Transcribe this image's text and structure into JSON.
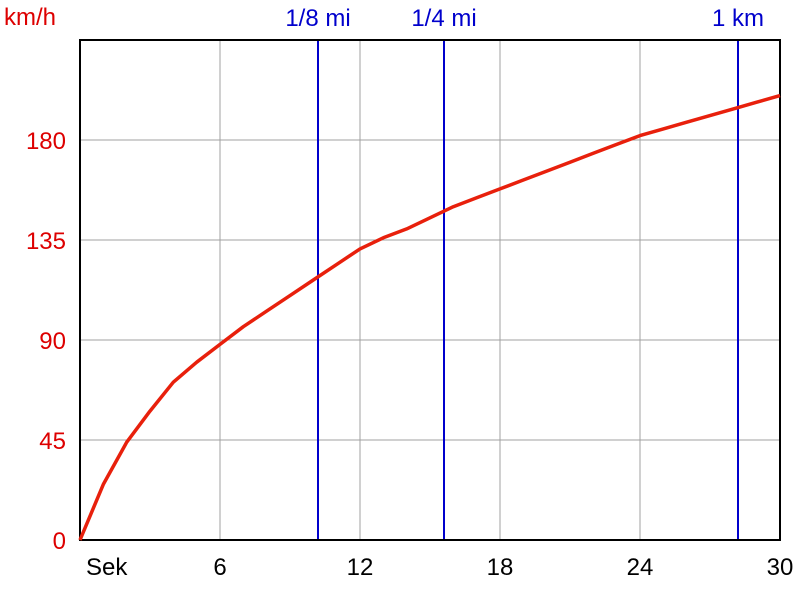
{
  "chart_data": {
    "type": "line",
    "ylabel": "km/h",
    "xlabel": "Sek",
    "xlim": [
      0,
      30
    ],
    "ylim": [
      0,
      225
    ],
    "grid": true,
    "x_ticks": [
      6,
      12,
      18,
      24,
      30
    ],
    "y_ticks": [
      0,
      45,
      90,
      135,
      180
    ],
    "series": [
      {
        "x": [
          0,
          1,
          2,
          3,
          4,
          5,
          6,
          7,
          8,
          9,
          10,
          11,
          12,
          13,
          14,
          15,
          16,
          17,
          18,
          19,
          20,
          21,
          22,
          23,
          24,
          25,
          26,
          27,
          28,
          29,
          30
        ],
        "y": [
          0,
          25,
          44,
          58,
          71,
          80,
          88,
          96,
          103,
          110,
          117,
          124,
          131,
          136,
          140,
          145,
          150,
          154,
          158,
          162,
          166,
          170,
          174,
          178,
          182,
          185,
          188,
          191,
          194,
          197,
          200
        ]
      }
    ],
    "markers": [
      {
        "label": "1/8 mi",
        "x": 10.2
      },
      {
        "label": "1/4 mi",
        "x": 15.6
      },
      {
        "label": "1 km",
        "x": 28.2
      }
    ]
  },
  "colors": {
    "curve": "#e8200c",
    "axis_text": "#dd0000",
    "marker": "#0000cc",
    "grid": "#a0a0a0",
    "frame": "#000000"
  }
}
